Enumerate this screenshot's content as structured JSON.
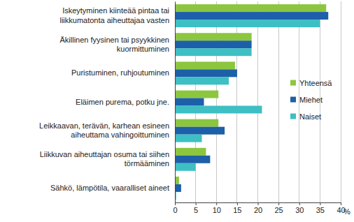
{
  "chart_data": {
    "type": "bar",
    "orientation": "horizontal",
    "categories": [
      "Iskeytyminen kiinteää pintaa tai liikkumatonta aiheuttajaa vasten",
      "Äkillinen fyysinen tai psyykkinen kuormittuminen",
      "Puristuminen, ruhjoutuminen",
      "Eläimen purema, potku jne.",
      "Leikkaavan, terävän, karhean esineen aiheuttama vahingoittuminen",
      "Liikkuvan aiheuttajan osuma tai siihen törmääminen",
      "Sähkö, lämpötila, vaaralliset aineet"
    ],
    "series": [
      {
        "name": "Yhteensä",
        "color": "#8cc63f",
        "values": [
          36.5,
          18.5,
          14.5,
          10.5,
          10.5,
          7.5,
          1.0
        ]
      },
      {
        "name": "Miehet",
        "color": "#1d5fa8",
        "values": [
          37.0,
          18.5,
          15.0,
          7.0,
          12.0,
          8.5,
          1.5
        ]
      },
      {
        "name": "Naiset",
        "color": "#3dbfc4",
        "values": [
          35.0,
          18.5,
          13.0,
          21.0,
          6.5,
          5.0,
          0.3
        ]
      }
    ],
    "x_label": "%",
    "xlim": [
      0,
      40
    ],
    "xticks": [
      0,
      5,
      10,
      15,
      20,
      25,
      30,
      35,
      40
    ],
    "grid": true,
    "legend": "right"
  }
}
